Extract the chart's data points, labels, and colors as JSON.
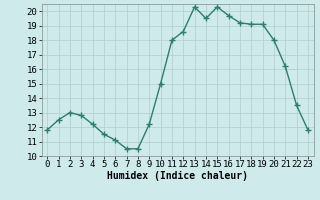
{
  "x": [
    0,
    1,
    2,
    3,
    4,
    5,
    6,
    7,
    8,
    9,
    10,
    11,
    12,
    13,
    14,
    15,
    16,
    17,
    18,
    19,
    20,
    21,
    22,
    23
  ],
  "y": [
    11.8,
    12.5,
    13.0,
    12.8,
    12.2,
    11.5,
    11.1,
    10.5,
    10.5,
    12.2,
    15.0,
    18.0,
    18.6,
    20.3,
    19.5,
    20.3,
    19.7,
    19.2,
    19.1,
    19.1,
    18.0,
    16.2,
    13.5,
    11.8
  ],
  "line_color": "#2e7d6e",
  "marker": "+",
  "marker_size": 4,
  "bg_color": "#ceeaea",
  "grid_color": "#b0cccc",
  "xlabel": "Humidex (Indice chaleur)",
  "xlim": [
    -0.5,
    23.5
  ],
  "ylim": [
    10,
    20.5
  ],
  "yticks": [
    10,
    11,
    12,
    13,
    14,
    15,
    16,
    17,
    18,
    19,
    20
  ],
  "xticks": [
    0,
    1,
    2,
    3,
    4,
    5,
    6,
    7,
    8,
    9,
    10,
    11,
    12,
    13,
    14,
    15,
    16,
    17,
    18,
    19,
    20,
    21,
    22,
    23
  ],
  "xlabel_fontsize": 7,
  "tick_fontsize": 6.5,
  "line_width": 1.0
}
